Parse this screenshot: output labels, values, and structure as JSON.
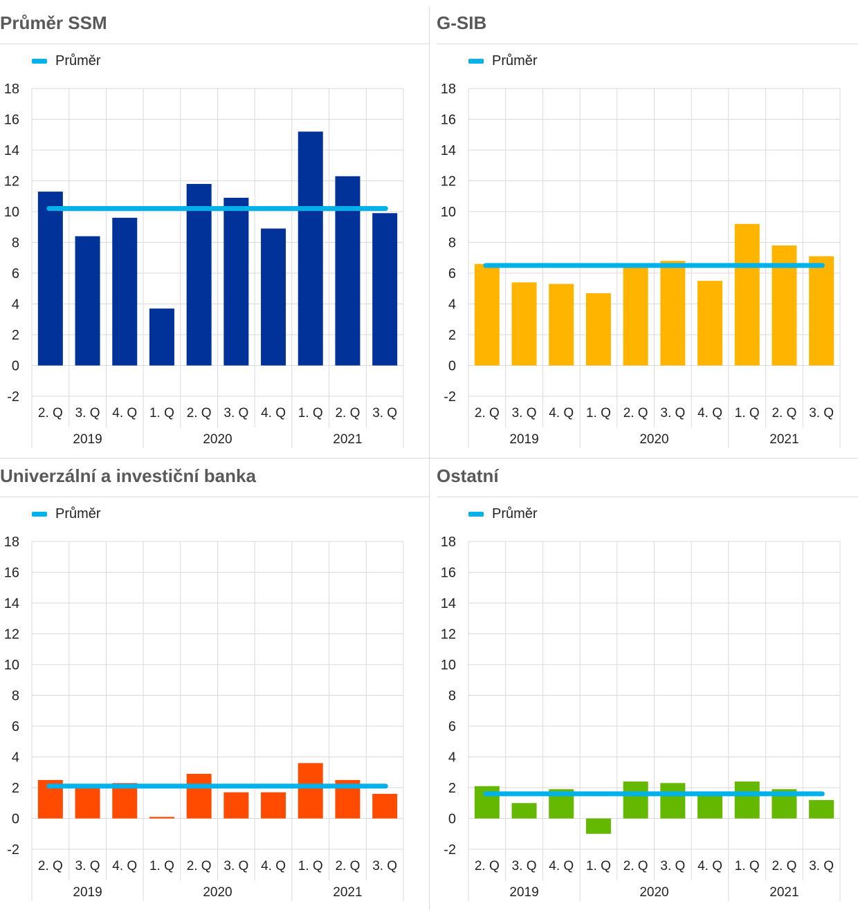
{
  "chart_data": [
    {
      "type": "bar",
      "title": "Průměr SSM",
      "categories": [
        "2. Q",
        "3. Q",
        "4. Q",
        "1. Q",
        "2. Q",
        "3. Q",
        "4. Q",
        "1. Q",
        "2. Q",
        "3. Q"
      ],
      "year_groups": [
        {
          "label": "2019",
          "count": 3
        },
        {
          "label": "2020",
          "count": 4
        },
        {
          "label": "2021",
          "count": 3
        }
      ],
      "values": [
        11.3,
        8.4,
        9.6,
        3.7,
        11.8,
        10.9,
        8.9,
        15.2,
        12.3,
        9.9
      ],
      "bar_color": "#003299",
      "average": {
        "name": "Průměr",
        "value": 10.2,
        "color": "#00b1ea"
      },
      "ylim": [
        -2,
        18
      ],
      "yticks": [
        -2,
        0,
        2,
        4,
        6,
        8,
        10,
        12,
        14,
        16,
        18
      ],
      "grid": true,
      "legend": "top-left"
    },
    {
      "type": "bar",
      "title": "G-SIB",
      "categories": [
        "2. Q",
        "3. Q",
        "4. Q",
        "1. Q",
        "2. Q",
        "3. Q",
        "4. Q",
        "1. Q",
        "2. Q",
        "3. Q"
      ],
      "year_groups": [
        {
          "label": "2019",
          "count": 3
        },
        {
          "label": "2020",
          "count": 4
        },
        {
          "label": "2021",
          "count": 3
        }
      ],
      "values": [
        6.6,
        5.4,
        5.3,
        4.7,
        6.4,
        6.8,
        5.5,
        9.2,
        7.8,
        7.1
      ],
      "bar_color": "#ffb400",
      "average": {
        "name": "Průměr",
        "value": 6.5,
        "color": "#00b1ea"
      },
      "ylim": [
        -2,
        18
      ],
      "yticks": [
        -2,
        0,
        2,
        4,
        6,
        8,
        10,
        12,
        14,
        16,
        18
      ],
      "grid": true,
      "legend": "top-left"
    },
    {
      "type": "bar",
      "title": "Univerzální a investiční banka",
      "categories": [
        "2. Q",
        "3. Q",
        "4. Q",
        "1. Q",
        "2. Q",
        "3. Q",
        "4. Q",
        "1. Q",
        "2. Q",
        "3. Q"
      ],
      "year_groups": [
        {
          "label": "2019",
          "count": 3
        },
        {
          "label": "2020",
          "count": 4
        },
        {
          "label": "2021",
          "count": 3
        }
      ],
      "values": [
        2.5,
        2.0,
        2.3,
        0.1,
        2.9,
        1.7,
        1.7,
        3.6,
        2.5,
        1.6
      ],
      "bar_color": "#ff4b00",
      "average": {
        "name": "Průměr",
        "value": 2.1,
        "color": "#00b1ea"
      },
      "ylim": [
        -2,
        18
      ],
      "yticks": [
        -2,
        0,
        2,
        4,
        6,
        8,
        10,
        12,
        14,
        16,
        18
      ],
      "grid": true,
      "legend": "top-left"
    },
    {
      "type": "bar",
      "title": "Ostatní",
      "categories": [
        "2. Q",
        "3. Q",
        "4. Q",
        "1. Q",
        "2. Q",
        "3. Q",
        "4. Q",
        "1. Q",
        "2. Q",
        "3. Q"
      ],
      "year_groups": [
        {
          "label": "2019",
          "count": 3
        },
        {
          "label": "2020",
          "count": 4
        },
        {
          "label": "2021",
          "count": 3
        }
      ],
      "values": [
        2.1,
        1.0,
        1.9,
        -1.0,
        2.4,
        2.3,
        1.6,
        2.4,
        1.9,
        1.2
      ],
      "bar_color": "#65b800",
      "average": {
        "name": "Průměr",
        "value": 1.6,
        "color": "#00b1ea"
      },
      "ylim": [
        -2,
        18
      ],
      "yticks": [
        -2,
        0,
        2,
        4,
        6,
        8,
        10,
        12,
        14,
        16,
        18
      ],
      "grid": true,
      "legend": "top-left"
    }
  ]
}
